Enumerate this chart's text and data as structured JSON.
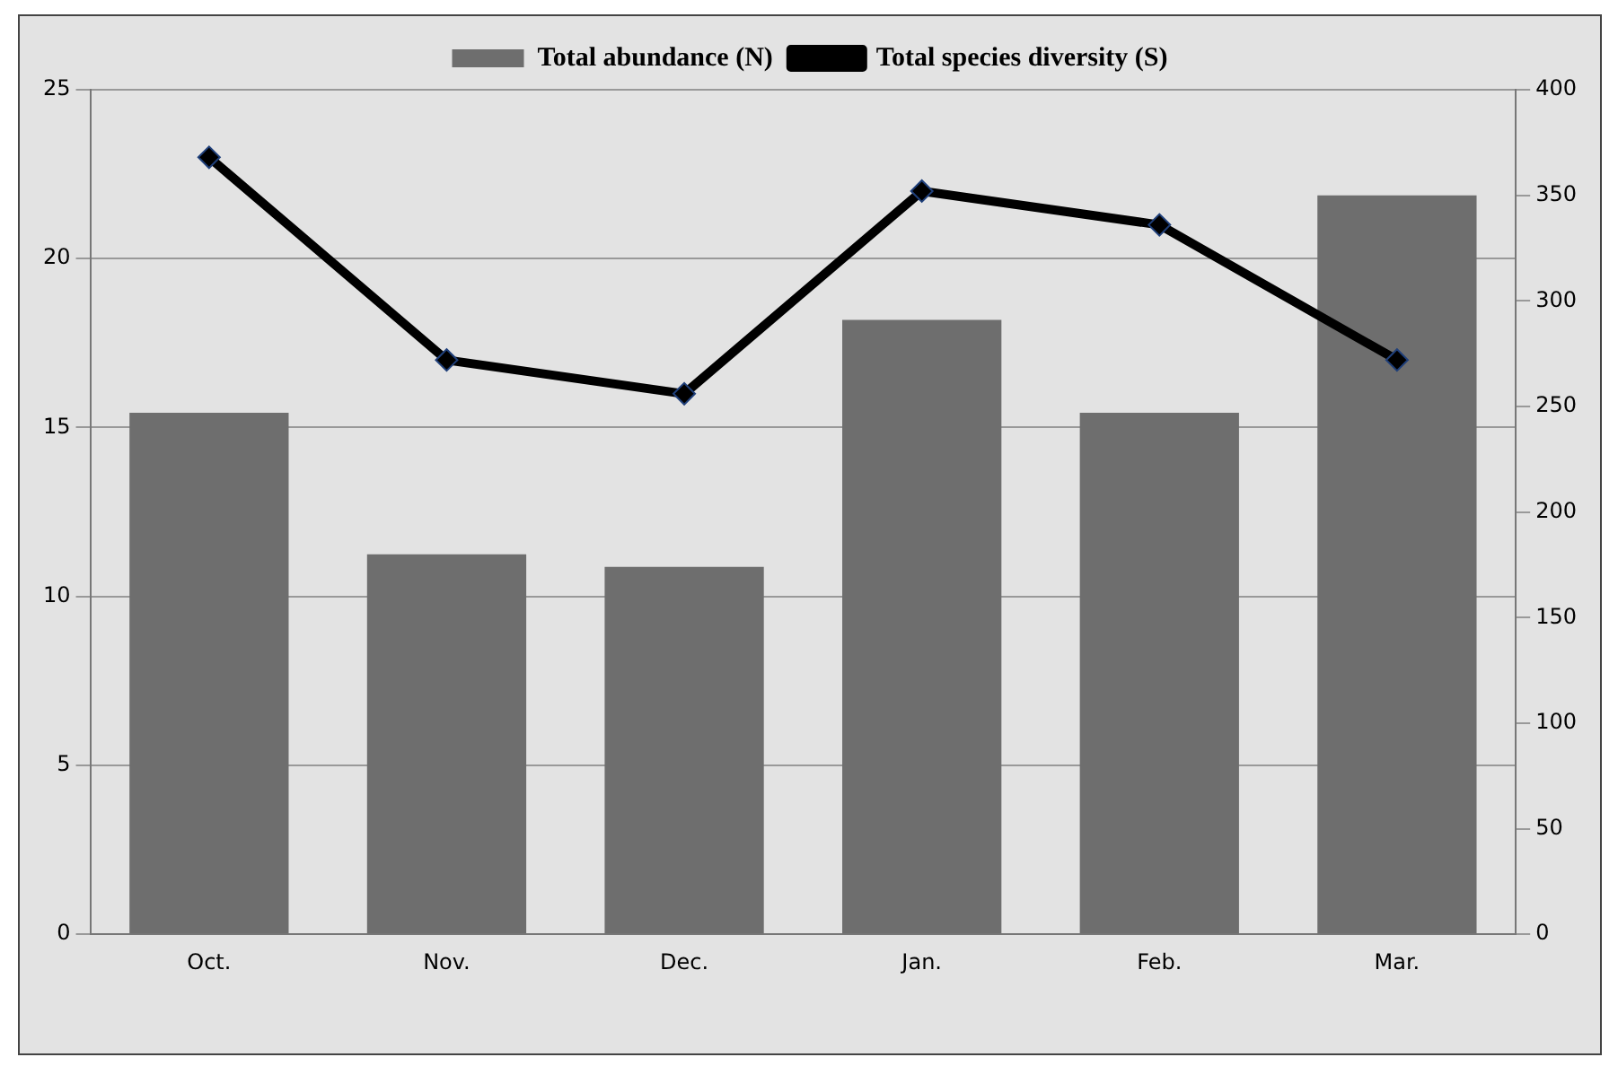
{
  "chart_data": {
    "type": "bar",
    "categories": [
      "Oct.",
      "Nov.",
      "Dec.",
      "Jan.",
      "Feb.",
      "Mar."
    ],
    "series": [
      {
        "name": "Total abundance (N)",
        "axis": "y2",
        "color": "#6e6e6e",
        "values": [
          247,
          180,
          174,
          291,
          247,
          350
        ]
      },
      {
        "name": "Total species diversity (S)",
        "type": "line",
        "color": "#000000",
        "marker": "diamond",
        "line_style": "solid",
        "values": [
          23,
          17,
          16,
          22,
          21,
          17
        ]
      }
    ],
    "ylim": [
      0,
      25
    ],
    "yticks": [
      0,
      5,
      10,
      15,
      20,
      25
    ],
    "y2lim": [
      0,
      400
    ],
    "y2ticks": [
      0,
      50,
      100,
      150,
      200,
      250,
      300,
      350,
      400
    ],
    "grid": "y",
    "legend": "top"
  }
}
